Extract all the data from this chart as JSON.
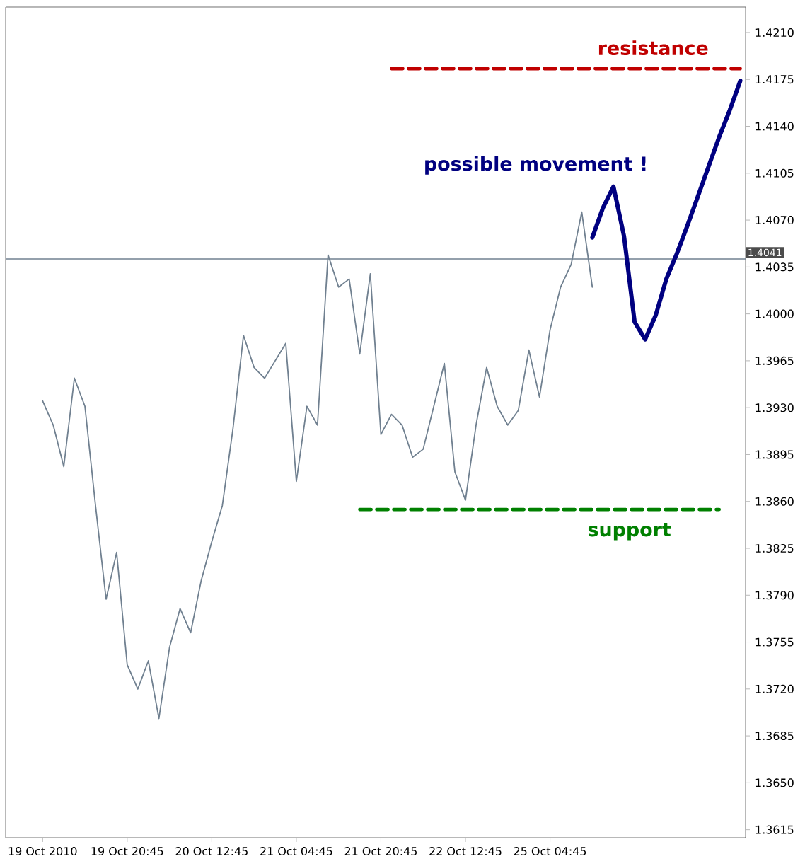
{
  "chart_data": {
    "type": "line",
    "ylim": [
      1.3609,
      1.4229
    ],
    "categories": [
      "19 Oct 2010",
      null,
      null,
      null,
      null,
      null,
      null,
      null,
      "19 Oct 20:45",
      null,
      null,
      null,
      null,
      null,
      null,
      null,
      "20 Oct 12:45",
      null,
      null,
      null,
      null,
      null,
      null,
      null,
      "21 Oct 04:45",
      null,
      null,
      null,
      null,
      null,
      null,
      null,
      "21 Oct 20:45",
      null,
      null,
      null,
      null,
      null,
      null,
      null,
      "22 Oct 12:45",
      null,
      null,
      null,
      null,
      null,
      null,
      null,
      "25 Oct 04:45",
      null,
      null,
      null,
      null,
      null,
      null,
      null,
      null,
      null,
      null,
      null,
      null,
      null,
      null,
      null,
      null,
      null,
      null
    ],
    "yticks": [
      {
        "value": 1.3615,
        "label": "1.3615"
      },
      {
        "value": 1.365,
        "label": "1.3650"
      },
      {
        "value": 1.3685,
        "label": "1.3685"
      },
      {
        "value": 1.372,
        "label": "1.3720"
      },
      {
        "value": 1.3755,
        "label": "1.3755"
      },
      {
        "value": 1.379,
        "label": "1.3790"
      },
      {
        "value": 1.3825,
        "label": "1.3825"
      },
      {
        "value": 1.386,
        "label": "1.3860"
      },
      {
        "value": 1.3895,
        "label": "1.3895"
      },
      {
        "value": 1.393,
        "label": "1.3930"
      },
      {
        "value": 1.3965,
        "label": "1.3965"
      },
      {
        "value": 1.4,
        "label": "1.4000"
      },
      {
        "value": 1.4035,
        "label": "1.4035"
      },
      {
        "value": 1.407,
        "label": "1.4070"
      },
      {
        "value": 1.4105,
        "label": "1.4105"
      },
      {
        "value": 1.414,
        "label": "1.4140"
      },
      {
        "value": 1.4175,
        "label": "1.4175"
      },
      {
        "value": 1.421,
        "label": "1.4210"
      }
    ],
    "series": [
      {
        "color": "#708090",
        "values": [
          1.3935,
          1.3917,
          1.3886,
          1.3952,
          1.3931,
          1.3857,
          1.3787,
          1.3822,
          1.3738,
          1.372,
          1.3741,
          1.3698,
          1.3751,
          1.378,
          1.3762,
          1.3801,
          1.383,
          1.3857,
          1.3914,
          1.3984,
          1.396,
          1.3952,
          1.3965,
          1.3978,
          1.3875,
          1.3931,
          1.3917,
          1.4044,
          1.402,
          1.4026,
          1.397,
          1.403,
          1.391,
          1.3925,
          1.3917,
          1.3893,
          1.3899,
          1.3931,
          1.3963,
          1.3882,
          1.3861,
          1.3917,
          1.396,
          1.3931,
          1.3917,
          1.3928,
          1.3973,
          1.3938,
          1.3988,
          1.402,
          1.4037,
          1.4076,
          1.402,
          null,
          null,
          null,
          null,
          null,
          null,
          null,
          null,
          null,
          null,
          null,
          null,
          null,
          null
        ]
      },
      {
        "name": "possible movement !",
        "color": "#000080",
        "values": [
          null,
          null,
          null,
          null,
          null,
          null,
          null,
          null,
          null,
          null,
          null,
          null,
          null,
          null,
          null,
          null,
          null,
          null,
          null,
          null,
          null,
          null,
          null,
          null,
          null,
          null,
          null,
          null,
          null,
          null,
          null,
          null,
          null,
          null,
          null,
          null,
          null,
          null,
          null,
          null,
          null,
          null,
          null,
          null,
          null,
          null,
          null,
          null,
          null,
          null,
          null,
          null,
          1.4057,
          1.4079,
          1.4095,
          1.4058,
          1.3994,
          1.3981,
          1.3999,
          1.4026,
          1.4045,
          1.4066,
          1.4088,
          1.411,
          1.4132,
          1.4152,
          1.4174
        ]
      },
      {
        "name": "resistance",
        "color": "#c00000",
        "line_style": "dashed",
        "values": [
          null,
          null,
          null,
          null,
          null,
          null,
          null,
          null,
          null,
          null,
          null,
          null,
          null,
          null,
          null,
          null,
          null,
          null,
          null,
          null,
          null,
          null,
          null,
          null,
          null,
          null,
          null,
          null,
          null,
          null,
          null,
          null,
          null,
          1.4183,
          1.4183,
          1.4183,
          1.4183,
          1.4183,
          1.4183,
          1.4183,
          1.4183,
          1.4183,
          1.4183,
          1.4183,
          1.4183,
          1.4183,
          1.4183,
          1.4183,
          1.4183,
          1.4183,
          1.4183,
          1.4183,
          1.4183,
          1.4183,
          1.4183,
          1.4183,
          1.4183,
          1.4183,
          1.4183,
          1.4183,
          1.4183,
          1.4183,
          1.4183,
          1.4183,
          1.4183,
          1.4183,
          1.4183
        ]
      },
      {
        "name": "support",
        "color": "#008000",
        "line_style": "dashed",
        "values": [
          null,
          null,
          null,
          null,
          null,
          null,
          null,
          null,
          null,
          null,
          null,
          null,
          null,
          null,
          null,
          null,
          null,
          null,
          null,
          null,
          null,
          null,
          null,
          null,
          null,
          null,
          null,
          null,
          null,
          null,
          1.3854,
          1.3854,
          1.3854,
          1.3854,
          1.3854,
          1.3854,
          1.3854,
          1.3854,
          1.3854,
          1.3854,
          1.3854,
          1.3854,
          1.3854,
          1.3854,
          1.3854,
          1.3854,
          1.3854,
          1.3854,
          1.3854,
          1.3854,
          1.3854,
          1.3854,
          1.3854,
          1.3854,
          1.3854,
          1.3854,
          1.3854,
          1.3854,
          1.3854,
          1.3854,
          1.3854,
          1.3854,
          1.3854,
          1.3854,
          1.3854,
          null,
          null
        ]
      }
    ],
    "ref_lines": [
      {
        "axis": "y",
        "value": 1.4041,
        "label": "1.4041",
        "color": "#708090"
      }
    ]
  }
}
